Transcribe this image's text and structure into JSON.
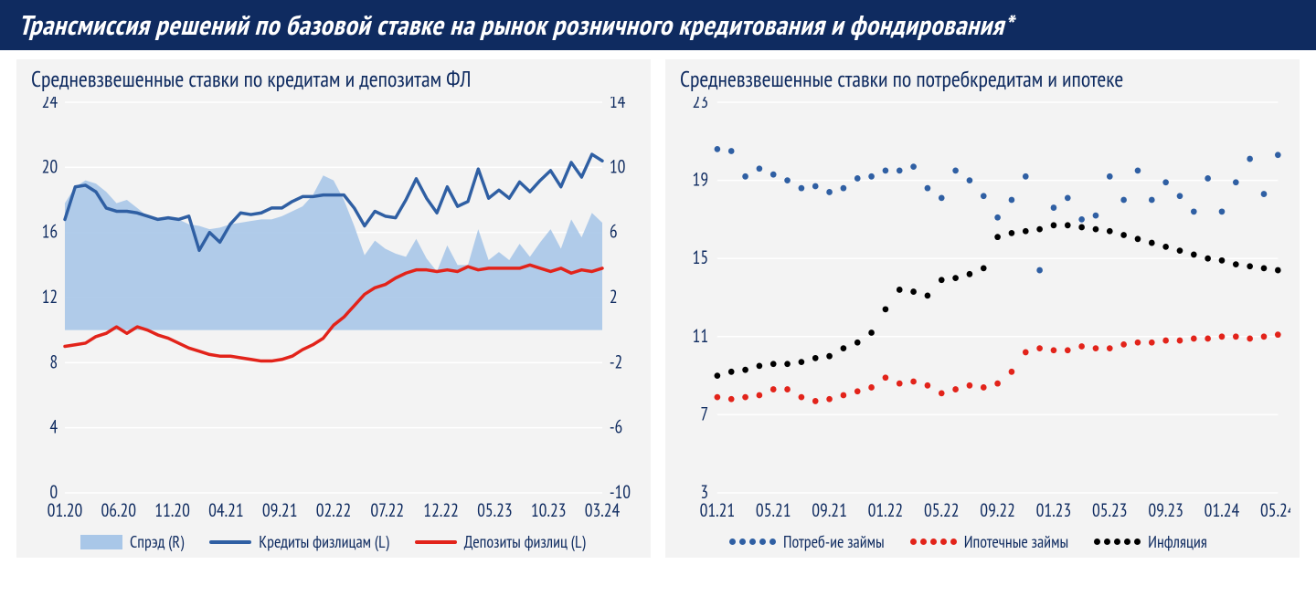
{
  "header_title": "Трансмиссия решений по базовой ставке на рынок розничного кредитования и фондирования*",
  "colors": {
    "header_bg": "#0f2b60",
    "header_text": "#ffffff",
    "panel_bg": "#f3f3f3",
    "grid": "#ffffff",
    "axis_text": "#0f2b60",
    "area_fill": "#a9c7e8",
    "line_credit": "#2f5fa3",
    "line_deposit": "#e2231a",
    "dot_consumer": "#2f5fa3",
    "dot_mortgage": "#e2231a",
    "dot_inflation": "#000000"
  },
  "left": {
    "title": "Средневзвешенные ставки по кредитам и депозитам ФЛ",
    "x_labels": [
      "01.20",
      "06.20",
      "11.20",
      "04.21",
      "09.21",
      "02.22",
      "07.22",
      "12.22",
      "05.23",
      "10.23",
      "03.24"
    ],
    "y_left": {
      "min": 0,
      "max": 24,
      "step": 4
    },
    "y_right": {
      "min": -10,
      "max": 14,
      "step": 4
    },
    "spread": [
      7.8,
      8.8,
      9.2,
      9.0,
      8.5,
      7.8,
      8.0,
      7.5,
      7.0,
      6.8,
      6.9,
      6.8,
      6.5,
      6.4,
      6.2,
      6.3,
      6.5,
      6.6,
      6.7,
      6.8,
      6.8,
      7.0,
      7.3,
      7.6,
      8.3,
      9.5,
      9.2,
      8.0,
      6.4,
      4.6,
      5.5,
      5.0,
      4.7,
      4.5,
      5.6,
      4.4,
      3.6,
      5.2,
      4.0,
      4.0,
      6.2,
      4.3,
      4.8,
      4.3,
      5.3,
      4.5,
      5.4,
      6.2,
      5.0,
      6.8,
      5.7,
      7.2,
      6.6
    ],
    "credit": [
      16.8,
      18.8,
      18.9,
      18.5,
      17.5,
      17.3,
      17.3,
      17.2,
      17.0,
      16.8,
      16.9,
      16.8,
      17.0,
      14.9,
      16.0,
      15.4,
      16.5,
      17.2,
      17.1,
      17.2,
      17.5,
      17.5,
      17.9,
      18.2,
      18.2,
      18.3,
      18.3,
      18.3,
      17.5,
      16.4,
      17.3,
      17.0,
      16.9,
      18.0,
      19.3,
      18.1,
      17.2,
      18.8,
      17.6,
      17.9,
      19.9,
      18.1,
      18.6,
      18.1,
      19.1,
      18.5,
      19.2,
      19.8,
      18.8,
      20.3,
      19.4,
      20.8,
      20.4
    ],
    "deposit": [
      9.0,
      9.1,
      9.2,
      9.6,
      9.8,
      10.2,
      9.8,
      10.2,
      10.0,
      9.7,
      9.5,
      9.2,
      8.9,
      8.7,
      8.5,
      8.4,
      8.4,
      8.3,
      8.2,
      8.1,
      8.1,
      8.2,
      8.4,
      8.8,
      9.1,
      9.5,
      10.3,
      10.8,
      11.5,
      12.2,
      12.6,
      12.8,
      13.2,
      13.5,
      13.7,
      13.7,
      13.6,
      13.7,
      13.6,
      13.9,
      13.7,
      13.8,
      13.8,
      13.8,
      13.8,
      14.0,
      13.8,
      13.6,
      13.8,
      13.5,
      13.7,
      13.6,
      13.8
    ],
    "legend": {
      "spread": "Спрэд (R)",
      "credit": "Кредиты физлицам (L)",
      "deposit": "Депозиты физлиц (L)"
    }
  },
  "right": {
    "title": "Средневзвешенные ставки по потребкредитам и ипотеке",
    "x_labels": [
      "01.21",
      "05.21",
      "09.21",
      "01.22",
      "05.22",
      "09.22",
      "01.23",
      "05.23",
      "09.23",
      "01.24",
      "05.24"
    ],
    "y": {
      "min": 3,
      "max": 23,
      "step": 4
    },
    "consumer": [
      20.6,
      20.5,
      19.2,
      19.6,
      19.3,
      19.0,
      18.6,
      18.7,
      18.4,
      18.6,
      19.1,
      19.2,
      19.5,
      19.5,
      19.7,
      18.6,
      18.1,
      19.5,
      19.0,
      18.2,
      17.1,
      18.0,
      19.2,
      14.4,
      17.6,
      18.1,
      17.0,
      17.2,
      19.2,
      18.0,
      19.5,
      18.0,
      18.9,
      18.2,
      17.4,
      19.1,
      17.4,
      18.9,
      20.1,
      18.3,
      20.3
    ],
    "mortgage": [
      7.9,
      7.8,
      7.9,
      8.0,
      8.3,
      8.3,
      7.9,
      7.7,
      7.8,
      8.0,
      8.2,
      8.4,
      8.9,
      8.6,
      8.7,
      8.5,
      8.1,
      8.3,
      8.5,
      8.4,
      8.6,
      9.2,
      10.2,
      10.4,
      10.3,
      10.3,
      10.5,
      10.4,
      10.4,
      10.6,
      10.7,
      10.7,
      10.8,
      10.8,
      10.9,
      10.9,
      11.0,
      11.0,
      10.9,
      11.0,
      11.1
    ],
    "inflation": [
      9.0,
      9.2,
      9.3,
      9.5,
      9.6,
      9.6,
      9.7,
      9.9,
      10.0,
      10.4,
      10.7,
      11.2,
      12.4,
      13.4,
      13.3,
      13.1,
      13.9,
      14.0,
      14.2,
      14.5,
      16.1,
      16.3,
      16.4,
      16.5,
      16.7,
      16.7,
      16.6,
      16.5,
      16.4,
      16.2,
      16.0,
      15.8,
      15.6,
      15.4,
      15.2,
      15.0,
      14.9,
      14.7,
      14.6,
      14.5,
      14.4
    ],
    "legend": {
      "consumer": "Потреб-ие займы",
      "mortgage": "Ипотечные займы",
      "inflation": "Инфляция"
    }
  }
}
